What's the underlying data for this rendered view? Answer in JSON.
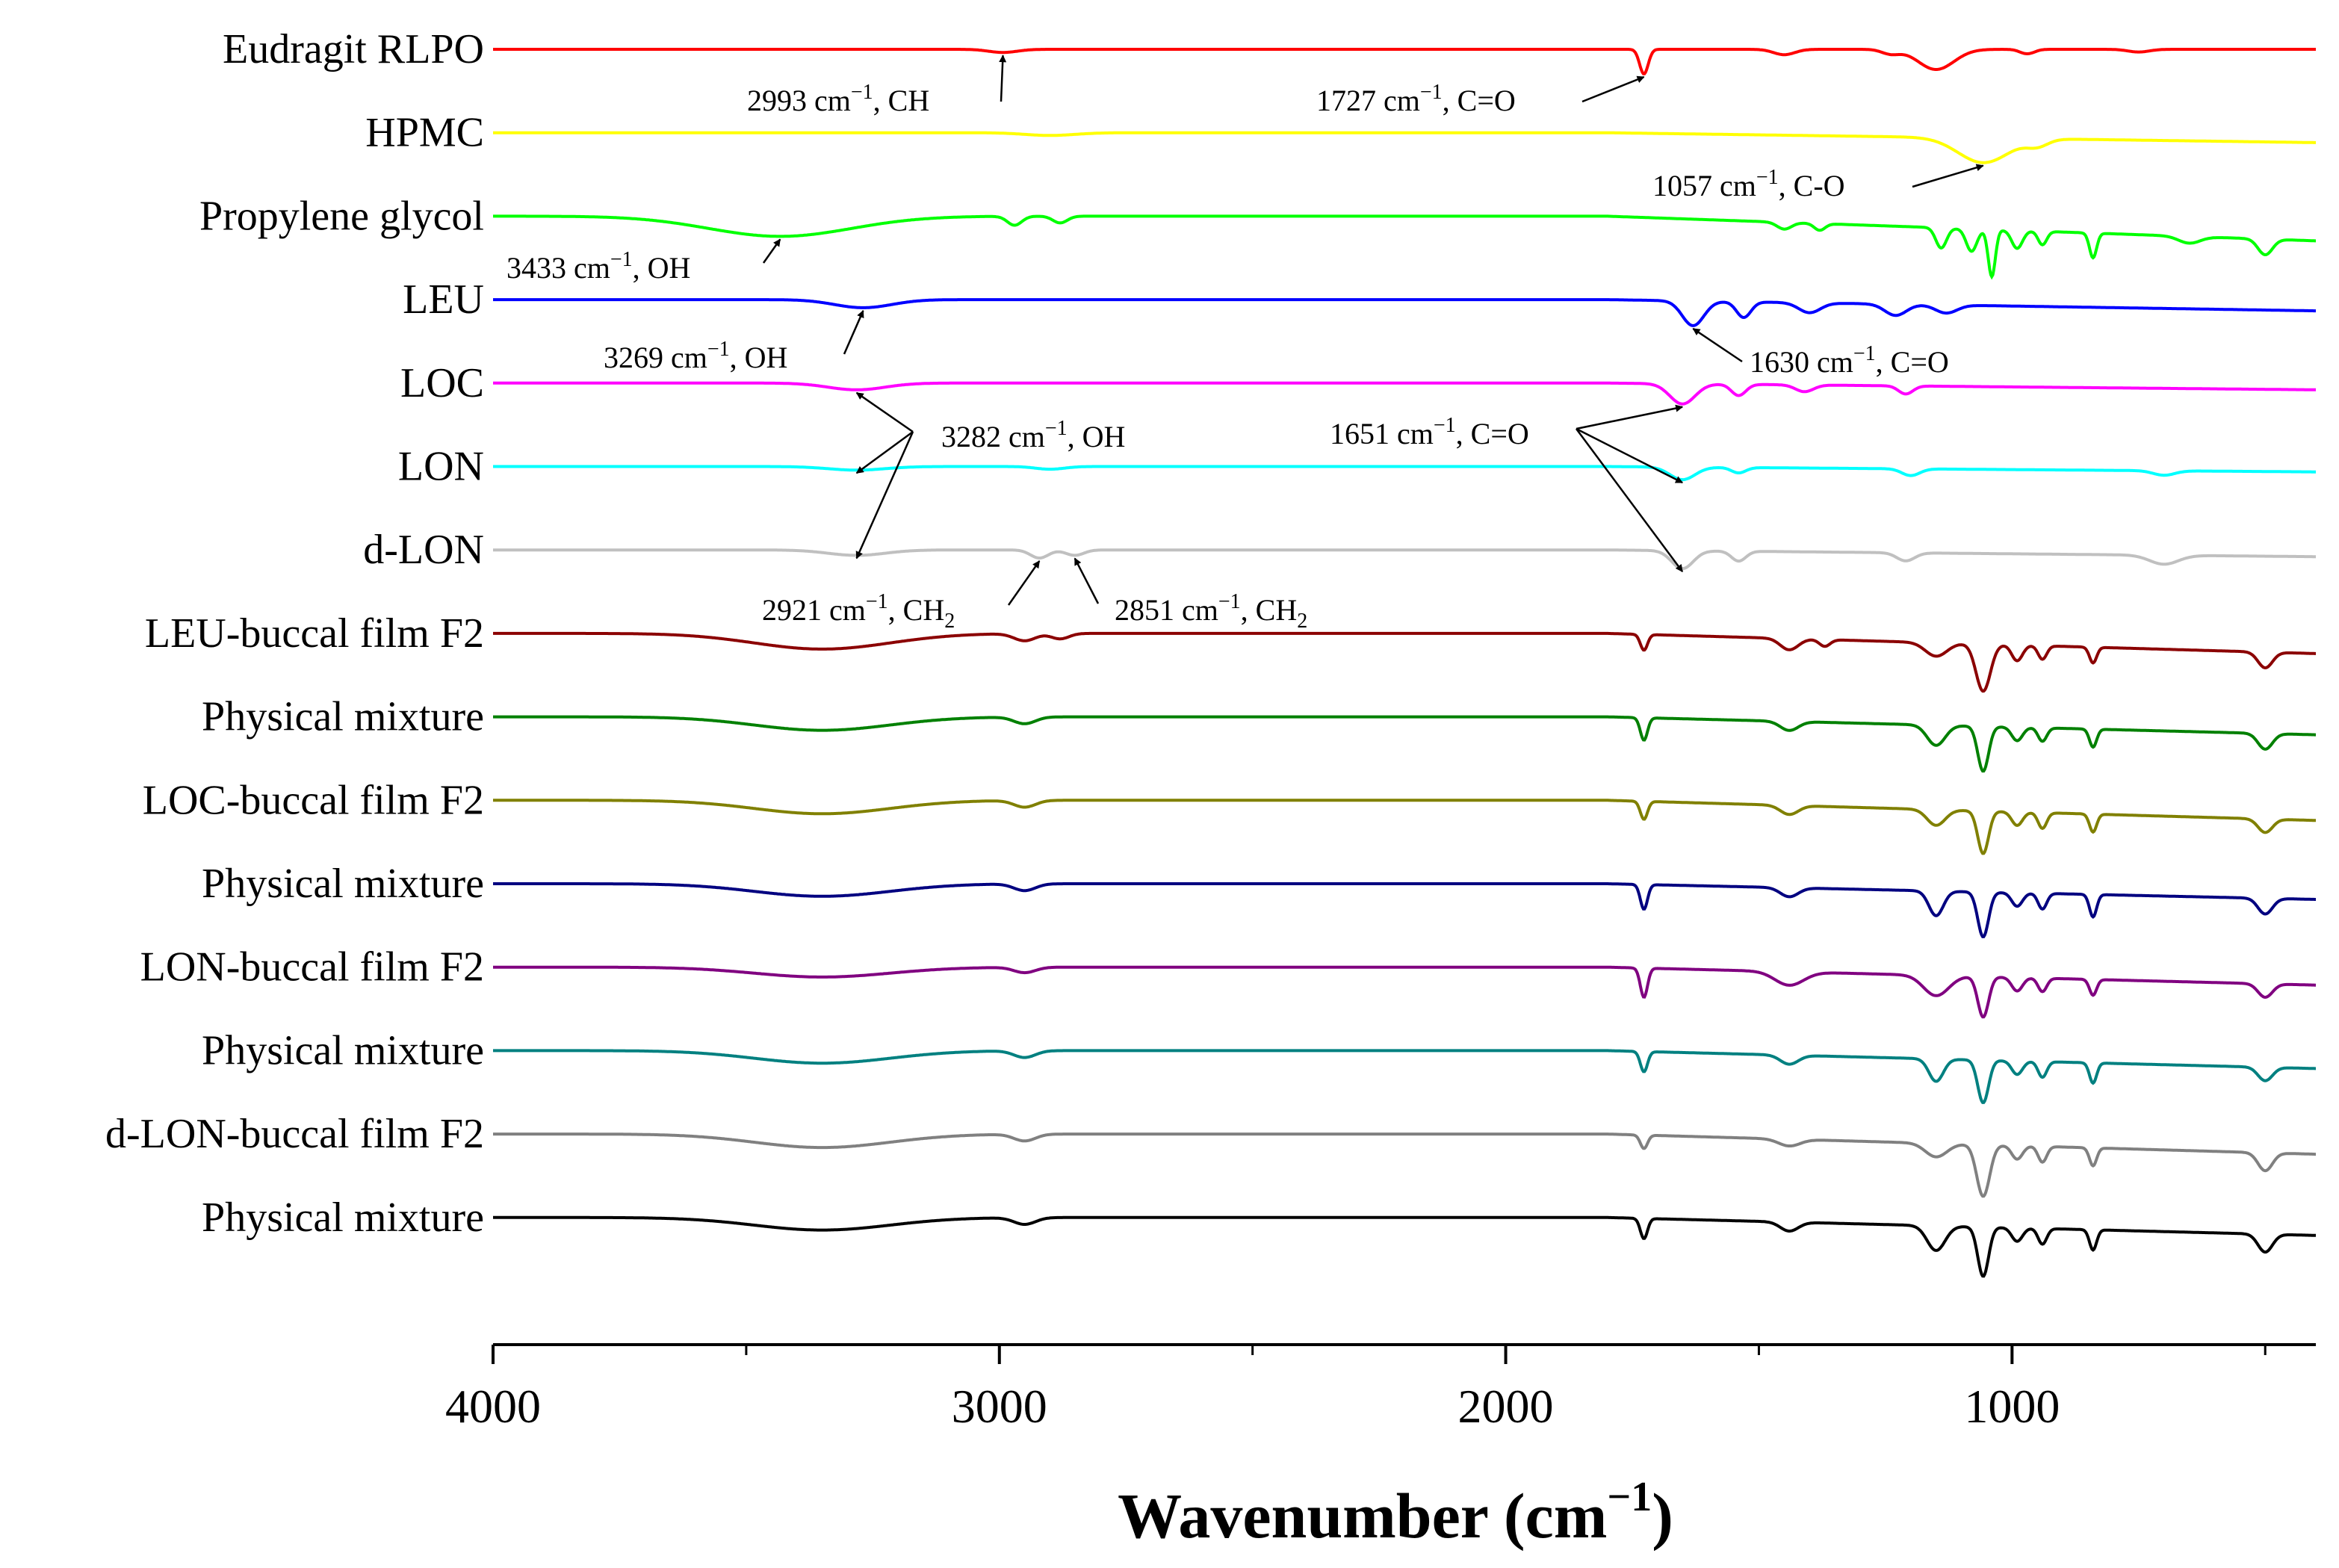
{
  "chart_data": {
    "type": "line",
    "title": "",
    "xlabel": "Wavenumber (cm",
    "xlabel_sup": "−1",
    "xlabel_close": ")",
    "ylabel": "",
    "xlim": [
      4000,
      400
    ],
    "x_reversed": true,
    "xticks": [
      4000,
      3000,
      2000,
      1000
    ],
    "xtick_labels": [
      "4000",
      "3000",
      "2000",
      "1000"
    ],
    "grid": false,
    "legend": "labels at left of each trace",
    "series": [
      {
        "name": "Eudragit RLPO",
        "color": "#ff0000",
        "dips": [
          [
            2993,
            0.07,
            40
          ],
          [
            1727,
            0.55,
            12
          ],
          [
            1450,
            0.12,
            30
          ],
          [
            1240,
            0.1,
            25
          ],
          [
            1150,
            0.45,
            50
          ],
          [
            970,
            0.1,
            20
          ],
          [
            750,
            0.06,
            30
          ]
        ]
      },
      {
        "name": "HPMC",
        "color": "#ffff00",
        "dips": [
          [
            2900,
            0.06,
            70
          ],
          [
            1057,
            0.55,
            70
          ],
          [
            950,
            0.15,
            30
          ]
        ],
        "drift": 0.22
      },
      {
        "name": "Propylene glycol",
        "color": "#00ff00",
        "dips": [
          [
            3433,
            0.45,
            200
          ],
          [
            2970,
            0.2,
            20
          ],
          [
            2880,
            0.15,
            20
          ],
          [
            1450,
            0.15,
            20
          ],
          [
            1380,
            0.15,
            15
          ],
          [
            1140,
            0.45,
            15
          ],
          [
            1080,
            0.5,
            15
          ],
          [
            1040,
            1.05,
            10
          ],
          [
            990,
            0.4,
            15
          ],
          [
            940,
            0.3,
            12
          ],
          [
            840,
            0.55,
            10
          ],
          [
            650,
            0.15,
            30
          ],
          [
            500,
            0.35,
            20
          ]
        ],
        "drift": 0.55
      },
      {
        "name": "LEU",
        "color": "#0000ff",
        "dips": [
          [
            3269,
            0.18,
            80
          ],
          [
            1630,
            0.55,
            30
          ],
          [
            1530,
            0.35,
            20
          ],
          [
            1400,
            0.22,
            30
          ],
          [
            1230,
            0.25,
            30
          ],
          [
            1130,
            0.18,
            30
          ]
        ],
        "drift": 0.25
      },
      {
        "name": "LOC",
        "color": "#ff00ff",
        "dips": [
          [
            3282,
            0.15,
            80
          ],
          [
            1651,
            0.45,
            35
          ],
          [
            1540,
            0.25,
            20
          ],
          [
            1410,
            0.15,
            25
          ],
          [
            1210,
            0.18,
            20
          ]
        ],
        "drift": 0.15
      },
      {
        "name": "LON",
        "color": "#00ffff",
        "dips": [
          [
            3282,
            0.08,
            80
          ],
          [
            2900,
            0.06,
            40
          ],
          [
            1651,
            0.28,
            35
          ],
          [
            1540,
            0.12,
            20
          ],
          [
            1200,
            0.15,
            25
          ],
          [
            700,
            0.1,
            30
          ]
        ],
        "drift": 0.12
      },
      {
        "name": "d-LON",
        "color": "#c0c0c0",
        "dips": [
          [
            3282,
            0.12,
            80
          ],
          [
            2921,
            0.18,
            25
          ],
          [
            2851,
            0.12,
            25
          ],
          [
            1651,
            0.4,
            30
          ],
          [
            1540,
            0.22,
            20
          ],
          [
            1210,
            0.18,
            25
          ],
          [
            700,
            0.2,
            40
          ]
        ],
        "drift": 0.15
      },
      {
        "name": "LEU-buccal film F2",
        "color": "#8b0000",
        "dips": [
          [
            3350,
            0.35,
            190
          ],
          [
            2950,
            0.16,
            30
          ],
          [
            2880,
            0.12,
            25
          ],
          [
            1727,
            0.35,
            10
          ],
          [
            1440,
            0.25,
            25
          ],
          [
            1370,
            0.15,
            15
          ],
          [
            1150,
            0.3,
            30
          ],
          [
            1057,
            1.05,
            20
          ],
          [
            990,
            0.35,
            15
          ],
          [
            940,
            0.3,
            12
          ],
          [
            840,
            0.35,
            10
          ],
          [
            500,
            0.35,
            20
          ]
        ],
        "drift": 0.45
      },
      {
        "name": "Physical mixture",
        "color": "#008000",
        "dips": [
          [
            3350,
            0.3,
            190
          ],
          [
            2950,
            0.15,
            30
          ],
          [
            1727,
            0.5,
            10
          ],
          [
            1440,
            0.2,
            25
          ],
          [
            1150,
            0.45,
            25
          ],
          [
            1057,
            1.0,
            15
          ],
          [
            990,
            0.3,
            15
          ],
          [
            940,
            0.3,
            12
          ],
          [
            840,
            0.4,
            10
          ],
          [
            500,
            0.35,
            20
          ]
        ],
        "drift": 0.4
      },
      {
        "name": "LOC-buccal film F2",
        "color": "#808000",
        "dips": [
          [
            3350,
            0.3,
            190
          ],
          [
            2950,
            0.15,
            30
          ],
          [
            1727,
            0.4,
            10
          ],
          [
            1440,
            0.2,
            25
          ],
          [
            1150,
            0.35,
            25
          ],
          [
            1057,
            0.95,
            15
          ],
          [
            990,
            0.3,
            15
          ],
          [
            940,
            0.35,
            12
          ],
          [
            840,
            0.4,
            10
          ],
          [
            500,
            0.3,
            20
          ]
        ],
        "drift": 0.45
      },
      {
        "name": "Physical mixture",
        "color": "#000080",
        "dips": [
          [
            3350,
            0.28,
            190
          ],
          [
            2950,
            0.15,
            30
          ],
          [
            1727,
            0.55,
            10
          ],
          [
            1440,
            0.2,
            25
          ],
          [
            1150,
            0.55,
            20
          ],
          [
            1057,
            1.0,
            15
          ],
          [
            990,
            0.3,
            15
          ],
          [
            940,
            0.35,
            12
          ],
          [
            840,
            0.5,
            10
          ],
          [
            500,
            0.35,
            20
          ]
        ],
        "drift": 0.35
      },
      {
        "name": "LON-buccal film F2",
        "color": "#800080",
        "dips": [
          [
            3350,
            0.22,
            190
          ],
          [
            2950,
            0.12,
            30
          ],
          [
            1727,
            0.65,
            10
          ],
          [
            1440,
            0.3,
            40
          ],
          [
            1150,
            0.45,
            35
          ],
          [
            1057,
            0.9,
            15
          ],
          [
            990,
            0.3,
            15
          ],
          [
            940,
            0.3,
            12
          ],
          [
            840,
            0.35,
            10
          ],
          [
            500,
            0.3,
            20
          ]
        ],
        "drift": 0.4
      },
      {
        "name": "Physical mixture",
        "color": "#008080",
        "dips": [
          [
            3350,
            0.28,
            190
          ],
          [
            2950,
            0.15,
            30
          ],
          [
            1727,
            0.45,
            10
          ],
          [
            1440,
            0.2,
            25
          ],
          [
            1150,
            0.5,
            20
          ],
          [
            1057,
            0.95,
            15
          ],
          [
            990,
            0.3,
            15
          ],
          [
            940,
            0.35,
            12
          ],
          [
            840,
            0.45,
            10
          ],
          [
            500,
            0.3,
            20
          ]
        ],
        "drift": 0.4
      },
      {
        "name": "d-LON-buccal film F2",
        "color": "#808080",
        "dips": [
          [
            3350,
            0.3,
            190
          ],
          [
            2950,
            0.15,
            30
          ],
          [
            1727,
            0.3,
            10
          ],
          [
            1440,
            0.15,
            30
          ],
          [
            1150,
            0.3,
            30
          ],
          [
            1057,
            1.15,
            18
          ],
          [
            990,
            0.3,
            15
          ],
          [
            940,
            0.35,
            12
          ],
          [
            840,
            0.4,
            10
          ],
          [
            500,
            0.4,
            20
          ]
        ],
        "drift": 0.45
      },
      {
        "name": "Physical mixture",
        "color": "#000000",
        "dips": [
          [
            3350,
            0.28,
            190
          ],
          [
            2950,
            0.15,
            30
          ],
          [
            1727,
            0.45,
            10
          ],
          [
            1440,
            0.2,
            25
          ],
          [
            1150,
            0.55,
            25
          ],
          [
            1057,
            1.1,
            15
          ],
          [
            990,
            0.3,
            15
          ],
          [
            940,
            0.35,
            12
          ],
          [
            840,
            0.45,
            10
          ],
          [
            500,
            0.4,
            20
          ]
        ],
        "drift": 0.4
      }
    ],
    "annotations": [
      {
        "id": "ann-2993",
        "series": 0,
        "wn": 2993,
        "text": "2993 cm",
        "sup": "−1",
        "tail": ", CH"
      },
      {
        "id": "ann-1727",
        "series": 0,
        "wn": 1727,
        "text": "1727 cm",
        "sup": "−1",
        "tail": ", C=O"
      },
      {
        "id": "ann-1057",
        "series": 1,
        "wn": 1057,
        "text": "1057 cm",
        "sup": "−1",
        "tail": ", C-O"
      },
      {
        "id": "ann-3433",
        "series": 2,
        "wn": 3433,
        "text": "3433 cm",
        "sup": "−1",
        "tail": ", OH"
      },
      {
        "id": "ann-3269",
        "series": 3,
        "wn": 3269,
        "text": "3269 cm",
        "sup": "−1",
        "tail": ", OH"
      },
      {
        "id": "ann-1630",
        "series": 3,
        "wn": 1630,
        "text": "1630 cm",
        "sup": "−1",
        "tail": ", C=O"
      },
      {
        "id": "ann-3282",
        "series": [
          4,
          5,
          6
        ],
        "wn": 3282,
        "text": "3282 cm",
        "sup": "−1",
        "tail": ", OH"
      },
      {
        "id": "ann-1651",
        "series": [
          4,
          5,
          6
        ],
        "wn": 1651,
        "text": "1651 cm",
        "sup": "−1",
        "tail": ", C=O"
      },
      {
        "id": "ann-2921",
        "series": 6,
        "wn": 2921,
        "text": "2921 cm",
        "sup": "−1",
        "tail": ", CH",
        "sub": "2"
      },
      {
        "id": "ann-2851",
        "series": 6,
        "wn": 2851,
        "text": "2851 cm",
        "sup": "−1",
        "tail": ", CH",
        "sub": "2"
      }
    ]
  }
}
